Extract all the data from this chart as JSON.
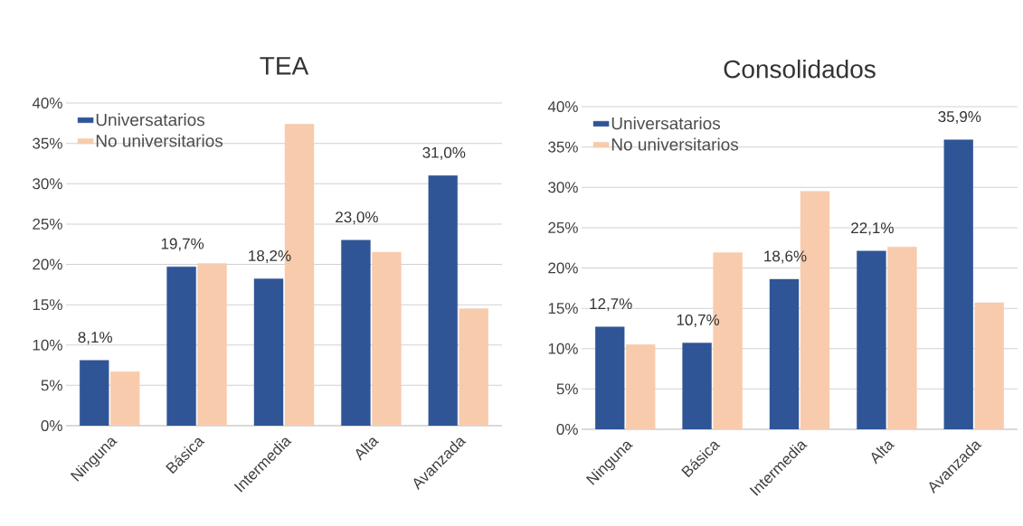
{
  "chart_data": [
    {
      "type": "bar",
      "title": "TEA",
      "categories": [
        "Ninguna",
        "Básica",
        "Intermedia",
        "Alta",
        "Avanzada"
      ],
      "series": [
        {
          "name": "Universatarios",
          "color": "#2f5597",
          "values": [
            8.1,
            19.7,
            18.2,
            23.0,
            31.0
          ],
          "value_labels": [
            "8,1%",
            "19,7%",
            "18,2%",
            "23,0%",
            "31,0%"
          ]
        },
        {
          "name": "No universitarios",
          "color": "#f8cbad",
          "values": [
            6.7,
            20.1,
            37.4,
            21.5,
            14.5
          ]
        }
      ],
      "ylim": [
        0,
        40
      ],
      "yticks": [
        {
          "value": 0,
          "label": "0%"
        },
        {
          "value": 5,
          "label": "5%"
        },
        {
          "value": 10,
          "label": "10%"
        },
        {
          "value": 15,
          "label": "15%"
        },
        {
          "value": 20,
          "label": "20%"
        },
        {
          "value": 25,
          "label": "25%"
        },
        {
          "value": 30,
          "label": "30%"
        },
        {
          "value": 35,
          "label": "35%"
        },
        {
          "value": 40,
          "label": "40%"
        }
      ],
      "grid": "y",
      "legend": "top left"
    },
    {
      "type": "bar",
      "title": "Consolidados",
      "categories": [
        "Ninguna",
        "Básica",
        "Intermedia",
        "Alta",
        "Avanzada"
      ],
      "series": [
        {
          "name": "Universatarios",
          "color": "#2f5597",
          "values": [
            12.7,
            10.7,
            18.6,
            22.1,
            35.9
          ],
          "value_labels": [
            "12,7%",
            "10,7%",
            "18,6%",
            "22,1%",
            "35,9%"
          ]
        },
        {
          "name": "No universitarios",
          "color": "#f8cbad",
          "values": [
            10.5,
            21.9,
            29.5,
            22.6,
            15.7
          ]
        }
      ],
      "ylim": [
        0,
        40
      ],
      "yticks": [
        {
          "value": 0,
          "label": "0%"
        },
        {
          "value": 5,
          "label": "5%"
        },
        {
          "value": 10,
          "label": "10%"
        },
        {
          "value": 15,
          "label": "15%"
        },
        {
          "value": 20,
          "label": "20%"
        },
        {
          "value": 25,
          "label": "25%"
        },
        {
          "value": 30,
          "label": "30%"
        },
        {
          "value": 35,
          "label": "35%"
        },
        {
          "value": 40,
          "label": "40%"
        }
      ],
      "grid": "y",
      "legend": "top left"
    }
  ]
}
